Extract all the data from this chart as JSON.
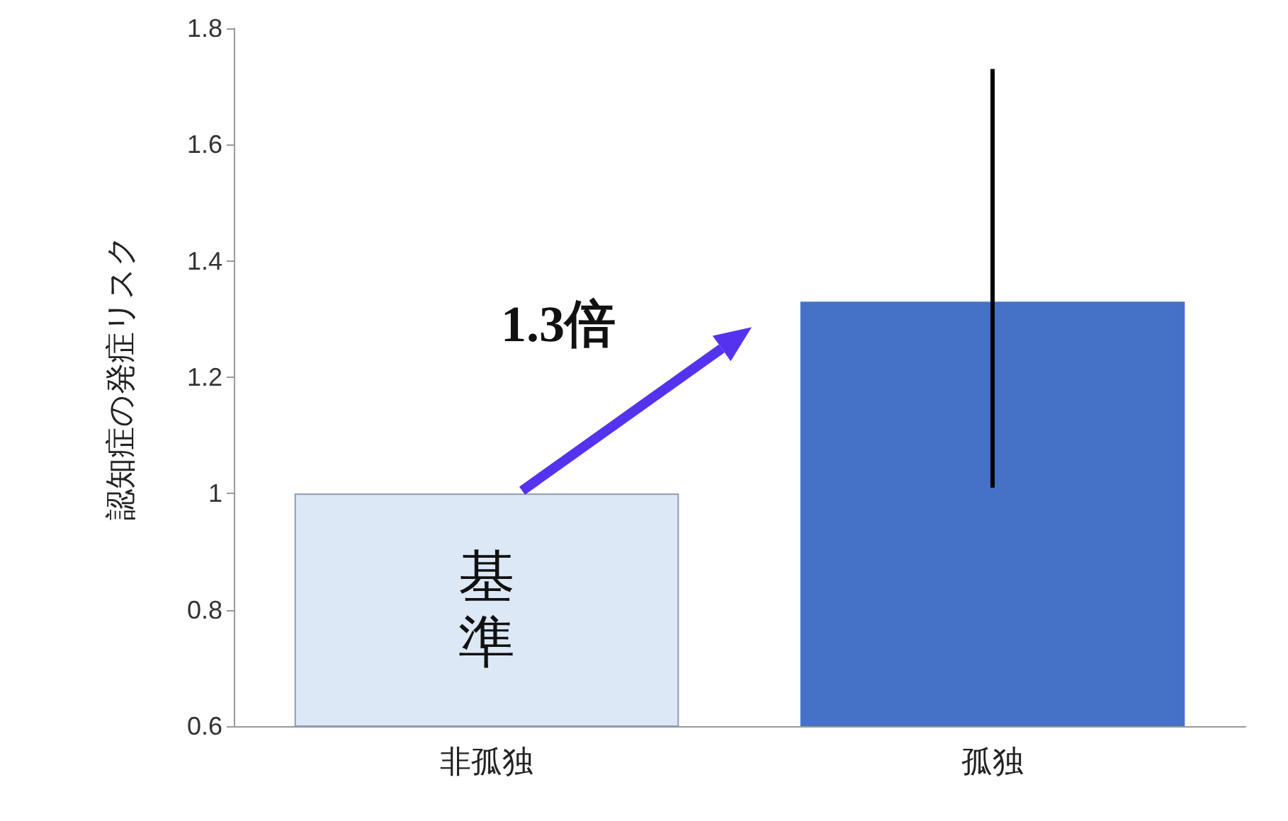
{
  "chart_data": {
    "type": "bar",
    "ylabel": "認知症の発症リスク",
    "categories": [
      "非孤独",
      "孤独"
    ],
    "values": [
      1,
      1.33
    ],
    "colors": [
      "#dce8f6",
      "#4572c6"
    ],
    "errors": [
      null,
      [
        1.01,
        1.73
      ]
    ],
    "ylim": [
      0.6,
      1.8
    ],
    "yticks": [
      0.6,
      0.8,
      1,
      1.2,
      1.4,
      1.6,
      1.8
    ],
    "grid": false,
    "annotations": [
      "基準",
      "1.3倍"
    ]
  }
}
